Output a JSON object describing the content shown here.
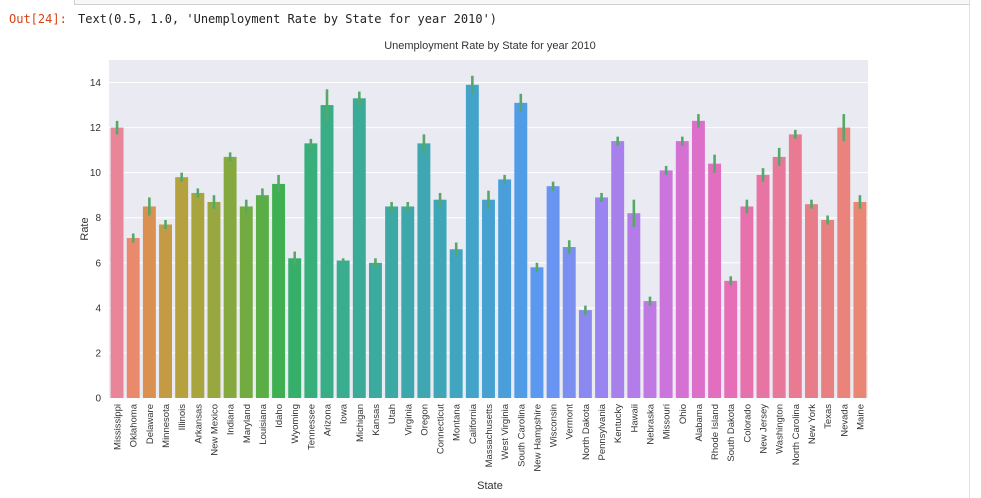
{
  "output": {
    "prompt": "Out[24]:",
    "text": "Text(0.5, 1.0, 'Unemployment Rate by State for year 2010')"
  },
  "chart_data": {
    "type": "bar",
    "title": "Unemployment Rate by State for year 2010",
    "xlabel": "State",
    "ylabel": "Rate",
    "ylim": [
      0,
      15
    ],
    "yticks": [
      0,
      2,
      4,
      6,
      8,
      10,
      12,
      14
    ],
    "grid": true,
    "background": "#eaeaf2",
    "error_color": "#55a868",
    "categories": [
      "Mississippi",
      "Oklahoma",
      "Delaware",
      "Minnesota",
      "Illinois",
      "Arkansas",
      "New Mexico",
      "Indiana",
      "Maryland",
      "Louisiana",
      "Idaho",
      "Wyoming",
      "Tennessee",
      "Arizona",
      "Iowa",
      "Michigan",
      "Kansas",
      "Utah",
      "Virginia",
      "Oregon",
      "Connecticut",
      "Montana",
      "California",
      "Massachusetts",
      "West Virginia",
      "South Carolina",
      "New Hampshire",
      "Wisconsin",
      "Vermont",
      "North Dakota",
      "Pennsylvania",
      "Kentucky",
      "Hawaii",
      "Nebraska",
      "Missouri",
      "Ohio",
      "Alabama",
      "Rhode Island",
      "South Dakota",
      "Colorado",
      "New Jersey",
      "Washington",
      "North Carolina",
      "New York",
      "Texas",
      "Nevada",
      "Maine"
    ],
    "values": [
      12.0,
      7.1,
      8.5,
      7.7,
      9.8,
      9.1,
      8.7,
      10.7,
      8.5,
      9.0,
      9.5,
      6.2,
      11.3,
      13.0,
      6.1,
      13.3,
      6.0,
      8.5,
      8.5,
      11.3,
      8.8,
      6.6,
      13.9,
      8.8,
      9.7,
      13.1,
      5.8,
      9.4,
      6.7,
      3.9,
      8.9,
      11.4,
      8.2,
      4.3,
      10.1,
      11.4,
      12.3,
      10.4,
      5.2,
      8.5,
      9.9,
      10.7,
      11.7,
      8.6,
      7.9,
      12.0,
      8.7
    ],
    "errors": [
      0.3,
      0.2,
      0.4,
      0.2,
      0.2,
      0.2,
      0.3,
      0.2,
      0.3,
      0.3,
      0.4,
      0.3,
      0.2,
      0.7,
      0.1,
      0.3,
      0.2,
      0.2,
      0.2,
      0.4,
      0.3,
      0.3,
      0.4,
      0.4,
      0.2,
      0.4,
      0.2,
      0.2,
      0.3,
      0.2,
      0.2,
      0.2,
      0.6,
      0.2,
      0.2,
      0.2,
      0.3,
      0.4,
      0.2,
      0.3,
      0.3,
      0.4,
      0.2,
      0.2,
      0.2,
      0.6,
      0.3
    ],
    "colors": [
      "#e98598",
      "#ea8a6c",
      "#d99050",
      "#c59a45",
      "#b6a13f",
      "#a8a43e",
      "#98a73f",
      "#86a93f",
      "#72ac41",
      "#5aae45",
      "#3eb052",
      "#36af6a",
      "#38ae7a",
      "#39ad86",
      "#3aac8f",
      "#3bab97",
      "#3caa9e",
      "#3ca9a4",
      "#3da8ab",
      "#3ea7b1",
      "#3fa6b8",
      "#41a5c0",
      "#43a3c8",
      "#46a1d1",
      "#4a9fdb",
      "#509ce6",
      "#5b98ef",
      "#6a94f1",
      "#7b8ff1",
      "#8b89f0",
      "#9a84ef",
      "#a780ec",
      "#b47ce8",
      "#c078e3",
      "#ca74dc",
      "#d471d3",
      "#dc6fca",
      "#e26ec0",
      "#e56eb6",
      "#e771ac",
      "#e874a3",
      "#e9779a",
      "#e97a92",
      "#e87d8a",
      "#e88082",
      "#e9837b",
      "#e98674"
    ]
  }
}
